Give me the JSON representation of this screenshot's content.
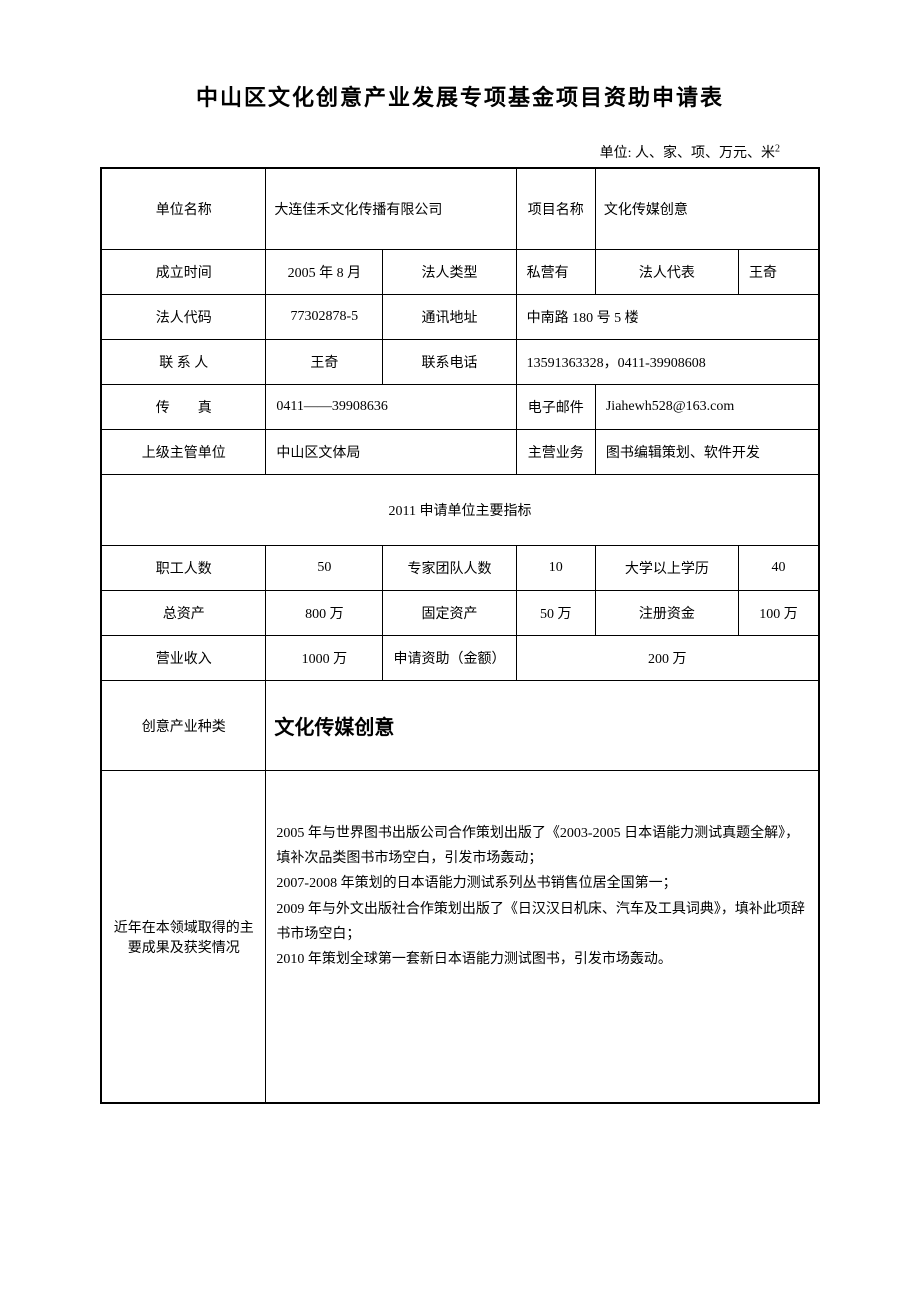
{
  "title": "中山区文化创意产业发展专项基金项目资助申请表",
  "unit_note": "单位: 人、家、项、万元、米",
  "unit_note_sup": "2",
  "row1": {
    "label1": "单位名称",
    "value1": "大连佳禾文化传播有限公司",
    "label2": "项目名称",
    "value2": "文化传媒创意"
  },
  "row2": {
    "label1": "成立时间",
    "value1": "2005 年 8 月",
    "label2": "法人类型",
    "value2": "私营有",
    "label3": "法人代表",
    "value3": "王奇"
  },
  "row3": {
    "label1": "法人代码",
    "value1": "77302878-5",
    "label2": "通讯地址",
    "value2": "中南路 180 号 5 楼"
  },
  "row4": {
    "label1": "联 系 人",
    "value1": "王奇",
    "label2": "联系电话",
    "value2": "13591363328，0411-39908608"
  },
  "row5": {
    "label1": "传　　真",
    "value1": "0411——39908636",
    "label2": "电子邮件",
    "value2": "Jiahewh528@163.com"
  },
  "row6": {
    "label1": "上级主管单位",
    "value1": "中山区文体局",
    "label2": "主营业务",
    "value2": "图书编辑策划、软件开发"
  },
  "section_header": "2011 申请单位主要指标",
  "row7": {
    "label1": "职工人数",
    "value1": "50",
    "label2": "专家团队人数",
    "value2": "10",
    "label3": "大学以上学历",
    "value3": "40"
  },
  "row8": {
    "label1": "总资产",
    "value1": "800 万",
    "label2": "固定资产",
    "value2": "50 万",
    "label3": "注册资金",
    "value3": "100 万"
  },
  "row9": {
    "label1": "营业收入",
    "value1": "1000 万",
    "label2": "申请资助（金额）",
    "value2": "200 万"
  },
  "row10": {
    "label": "创意产业种类",
    "value": "文化传媒创意"
  },
  "row11": {
    "label": "近年在本领域取得的主要成果及获奖情况",
    "content_line1": "2005 年与世界图书出版公司合作策划出版了《2003-2005 日本语能力测试真题全解》，填补次品类图书市场空白，引发市场轰动；",
    "content_line2": "2007-2008 年策划的日本语能力测试系列丛书销售位居全国第一；",
    "content_line3": "2009 年与外文出版社合作策划出版了《日汉汉日机床、汽车及工具词典》，填补此项辞书市场空白；",
    "content_line4": "2010 年策划全球第一套新日本语能力测试图书，引发市场轰动。"
  }
}
